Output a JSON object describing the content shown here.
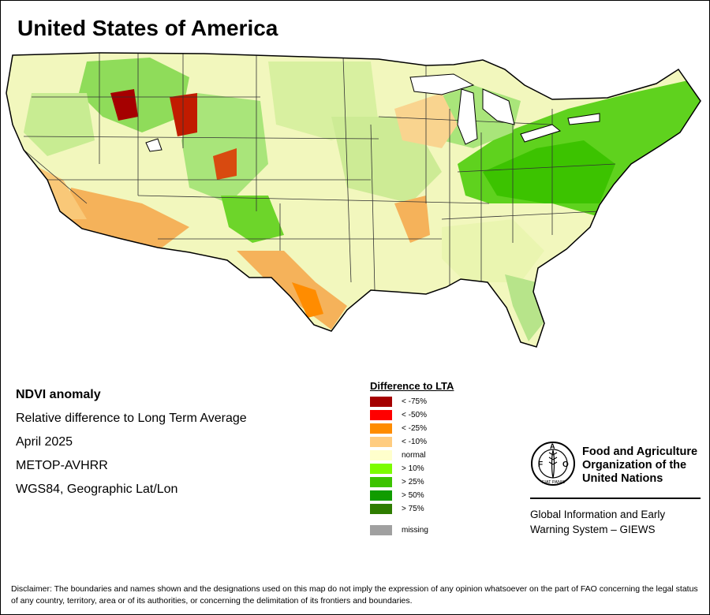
{
  "title": "United States of America",
  "info": {
    "product": "NDVI anomaly",
    "description": "Relative difference to Long Term Average",
    "period": "April 2025",
    "sensor": "METOP-AVHRR",
    "projection": "WGS84, Geographic Lat/Lon"
  },
  "legend": {
    "title": "Difference to LTA",
    "items": [
      {
        "label": "< -75%",
        "color": "#a50000"
      },
      {
        "label": "< -50%",
        "color": "#ff0000"
      },
      {
        "label": "< -25%",
        "color": "#ff8c00"
      },
      {
        "label": "< -10%",
        "color": "#ffcc80"
      },
      {
        "label": "normal",
        "color": "#ffffcc"
      },
      {
        "label": "> 10%",
        "color": "#7cfc00"
      },
      {
        "label": "> 25%",
        "color": "#3cc300"
      },
      {
        "label": "> 50%",
        "color": "#109c00"
      },
      {
        "label": "> 75%",
        "color": "#2e7d00"
      }
    ],
    "missing": {
      "label": "missing",
      "color": "#a0a0a0"
    }
  },
  "organization": {
    "name_lines": [
      "Food and Agriculture",
      "Organization of the",
      "United Nations"
    ],
    "logo_letters": "FAO",
    "logo_motto": "FIAT PANIS",
    "system_lines": [
      "Global Information and Early",
      "Warning System – GIEWS"
    ]
  },
  "disclaimer": "Disclaimer: The boundaries and names shown and the designations used on this map do not imply the expression of any opinion whatsoever on the part of FAO concerning the legal status of any country, territory, area or of its authorities, or concerning the delimitation of its frontiers and boundaries."
}
